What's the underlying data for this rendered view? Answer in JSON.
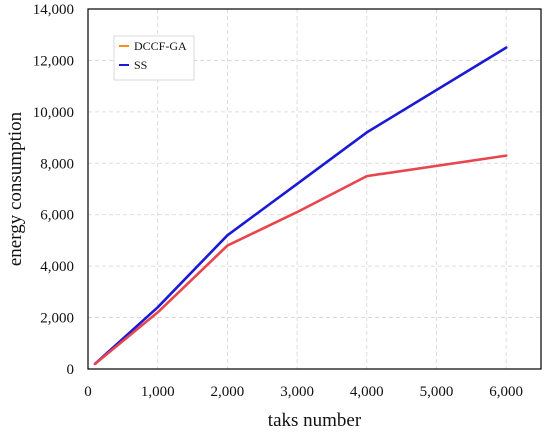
{
  "chart_data": {
    "type": "line",
    "title": "",
    "xlabel": "taks number",
    "ylabel": "energy consumption",
    "xlim": [
      0,
      6500
    ],
    "ylim": [
      0,
      14000
    ],
    "xticks": [
      0,
      1000,
      2000,
      3000,
      4000,
      5000,
      6000
    ],
    "xtick_labels": [
      "0",
      "1,000",
      "2,000",
      "3,000",
      "4,000",
      "5,000",
      "6,000"
    ],
    "yticks": [
      0,
      2000,
      4000,
      6000,
      8000,
      10000,
      12000,
      14000
    ],
    "ytick_labels": [
      "0",
      "2,000",
      "4,000",
      "6,000",
      "8,000",
      "10,000",
      "12,000",
      "14,000"
    ],
    "grid": true,
    "legend_position": "top-left",
    "x": [
      100,
      1000,
      2000,
      3000,
      4000,
      6000
    ],
    "series": [
      {
        "name": "DCCF-GA",
        "legend_color": "#ff8c1a",
        "line_color": "#e8454d",
        "values": [
          200,
          2200,
          4800,
          6100,
          7500,
          8300
        ]
      },
      {
        "name": "SS",
        "legend_color": "#1a1ad6",
        "line_color": "#1a1ad6",
        "values": [
          200,
          2400,
          5200,
          7200,
          9200,
          12500
        ]
      }
    ]
  }
}
